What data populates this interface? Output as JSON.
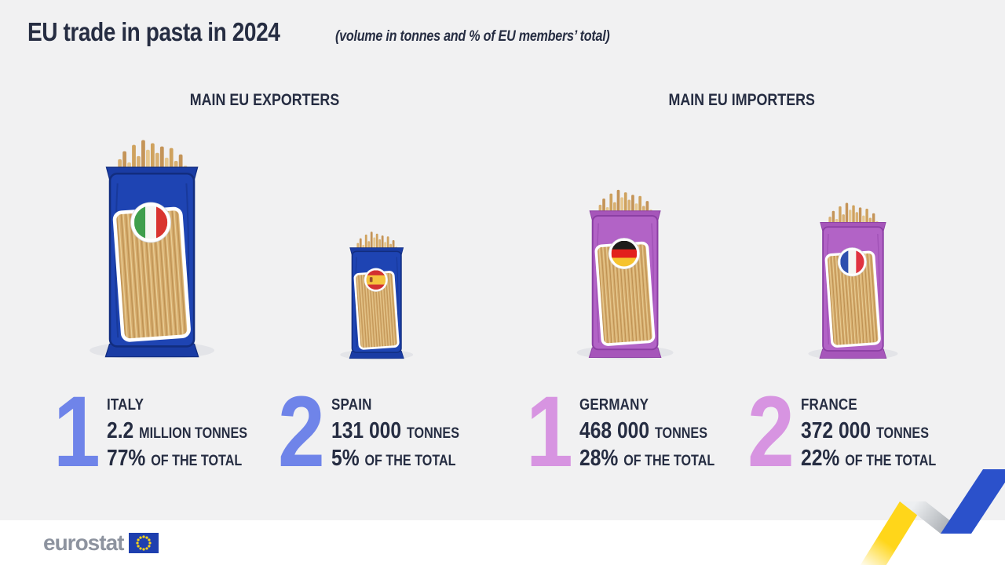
{
  "title": {
    "text": "EU trade in pasta in 2024",
    "subtitle": "(volume in tonnes and % of EU members’ total)"
  },
  "sections": {
    "exporters": "MAIN EU EXPORTERS",
    "importers": "MAIN EU IMPORTERS"
  },
  "countries": [
    {
      "key": "italy",
      "group": "exporters",
      "rank": "1",
      "name": "ITALY",
      "value": "2.2",
      "unit": "MILLION TONNES",
      "percent": "77%",
      "percent_label": "OF THE TOTAL",
      "package": "blue",
      "flag": "italy"
    },
    {
      "key": "spain",
      "group": "exporters",
      "rank": "2",
      "name": "SPAIN",
      "value": "131 000",
      "unit": "TONNES",
      "percent": "5%",
      "percent_label": "OF THE TOTAL",
      "package": "blue",
      "flag": "spain"
    },
    {
      "key": "germany",
      "group": "importers",
      "rank": "1",
      "name": "GERMANY",
      "value": "468 000",
      "unit": "TONNES",
      "percent": "28%",
      "percent_label": "OF THE TOTAL",
      "package": "purple",
      "flag": "germany"
    },
    {
      "key": "france",
      "group": "importers",
      "rank": "2",
      "name": "FRANCE",
      "value": "372 000",
      "unit": "TONNES",
      "percent": "22%",
      "percent_label": "OF THE TOTAL",
      "package": "purple",
      "flag": "france"
    }
  ],
  "chart_data": {
    "type": "bar",
    "title": "EU trade in pasta in 2024",
    "subtitle": "volume in tonnes and % of EU members’ total",
    "groups": [
      "MAIN EU EXPORTERS",
      "MAIN EU IMPORTERS"
    ],
    "categories": [
      "Italy",
      "Spain",
      "Germany",
      "France"
    ],
    "series": [
      {
        "name": "Volume (tonnes)",
        "values": [
          2200000,
          131000,
          468000,
          372000
        ]
      },
      {
        "name": "Share of EU members’ total (%)",
        "values": [
          77,
          5,
          28,
          22
        ]
      }
    ],
    "ranks": {
      "Italy": "exporter 1",
      "Spain": "exporter 2",
      "Germany": "importer 1",
      "France": "importer 2"
    },
    "value_labels": [
      "2.2 MILLION TONNES",
      "131 000 TONNES",
      "468 000 TONNES",
      "372 000 TONNES"
    ],
    "percent_labels": [
      "77% OF THE TOTAL",
      "5% OF THE TOTAL",
      "28% OF THE TOTAL",
      "22% OF THE TOTAL"
    ]
  },
  "footer": {
    "brand": "eurostat"
  },
  "colors": {
    "background": "#F1F1F2",
    "footer_bg": "#FFFFFF",
    "text": "#262D42",
    "exporter_rank": "#6F84E9",
    "importer_rank": "#D794E1",
    "shadow": "#E3E4E8",
    "pasta_base": "#D6AC6D",
    "pasta_dark": "#BD9152",
    "pasta_light": "#ECD49C",
    "stick_colors": [
      "#D8B072",
      "#C49458",
      "#E6C78E",
      "#CFA25E"
    ],
    "logo_gray": "#8D939F",
    "eu_flag_blue": "#1E3FAF",
    "eu_star_yellow": "#FFD617",
    "ribbon_yellow": "#FFD61A",
    "ribbon_blue": "#2B51CB",
    "ribbon_fold_light": "#EDEFF1",
    "ribbon_fold_dark": "#94999F"
  },
  "packages": {
    "blue": {
      "body": "#1E44B3",
      "crimp": "#1A3CA4",
      "edge": "#122D7F"
    },
    "purple": {
      "body": "#B263C6",
      "crimp": "#A656BA",
      "edge": "#8B3FA3"
    }
  },
  "flags": {
    "italy": {
      "type": "vertical",
      "colors": [
        "#3F9F4C",
        "#F5F6F2",
        "#D9342F"
      ]
    },
    "spain": {
      "type": "horizontal",
      "colors": [
        "#D23131",
        "#F5C33E",
        "#D23131"
      ],
      "ratios": [
        0.26,
        0.48,
        0.26
      ],
      "emblem": true
    },
    "germany": {
      "type": "horizontal",
      "colors": [
        "#1D1D1B",
        "#E2211C",
        "#F6C32E"
      ]
    },
    "france": {
      "type": "vertical",
      "colors": [
        "#2E4FAE",
        "#F5F6F2",
        "#E03440"
      ]
    }
  }
}
